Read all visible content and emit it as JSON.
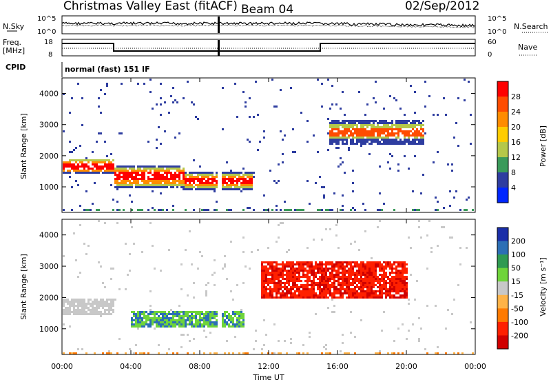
{
  "header": {
    "title": "Christmas Valley East (fitACF)",
    "beam": "Beam 04",
    "date": "02/Sep/2012"
  },
  "panels": {
    "nsky_label": "N.Sky",
    "nsky_ticks": [
      "10^5",
      "10^0"
    ],
    "nsearch_label": "N.Search",
    "nsearch_ticks": [
      "10^5",
      "10^0"
    ],
    "freq_label": "Freq.",
    "freq_unit": "[MHz]",
    "freq_ticks": [
      "18",
      "8"
    ],
    "nave_label": "Nave",
    "nave_ticks": [
      "60",
      "0"
    ],
    "cpid_label": "CPID",
    "cpid_text": "normal (fast) 151 IF"
  },
  "chart_data": [
    {
      "type": "heatmap",
      "name": "Power",
      "ylabel": "Slant Range [km]",
      "yticks": [
        "4000",
        "3000",
        "2000",
        "1000"
      ],
      "ylim": [
        180,
        4500
      ],
      "colorbar": {
        "label": "Power [dB]",
        "ticks": [
          "28",
          "24",
          "20",
          "16",
          "12",
          "8",
          "4"
        ],
        "colors": [
          "#ff0000",
          "#ff4c00",
          "#ff8c00",
          "#ffcc00",
          "#b5c84a",
          "#3a9a5a",
          "#2e3da0",
          "#0026ff"
        ]
      },
      "features": [
        {
          "time": [
            0,
            3.0
          ],
          "range": [
            1450,
            1950
          ],
          "level": "high"
        },
        {
          "time": [
            3.0,
            7.0
          ],
          "range": [
            1000,
            1750
          ],
          "level": "high"
        },
        {
          "time": [
            7.0,
            11.0
          ],
          "range": [
            950,
            1500
          ],
          "level": "high"
        },
        {
          "time": [
            15.5,
            21.0
          ],
          "range": [
            2400,
            3200
          ],
          "level": "medium"
        }
      ]
    },
    {
      "type": "heatmap",
      "name": "Velocity",
      "ylabel": "Slant Range [km]",
      "xlabel": "Time UT",
      "xticks": [
        "00:00",
        "04:00",
        "08:00",
        "12:00",
        "16:00",
        "20:00",
        "00:00"
      ],
      "xlim_hours": [
        0,
        24
      ],
      "yticks": [
        "4000",
        "3000",
        "2000",
        "1000"
      ],
      "ylim": [
        180,
        4500
      ],
      "colorbar": {
        "label": "Velocity [m s⁻¹]",
        "ticks": [
          "200",
          "100",
          "50",
          "15",
          "-15",
          "-50",
          "-100",
          "-200"
        ],
        "colors": [
          "#1a2ea8",
          "#2c6fb5",
          "#2f9a52",
          "#6fd43a",
          "#c8c8c8",
          "#ffb347",
          "#ff7a00",
          "#ff2000",
          "#d00000"
        ]
      },
      "features": [
        {
          "time": [
            0,
            3.0
          ],
          "range": [
            1500,
            2000
          ],
          "velocity": "near-zero (ground scatter)"
        },
        {
          "time": [
            4.0,
            10.5
          ],
          "range": [
            1100,
            1600
          ],
          "velocity": "positive (green/blue)"
        },
        {
          "time": [
            11.5,
            20.0
          ],
          "range": [
            2000,
            3200
          ],
          "velocity": "negative (red)"
        }
      ]
    }
  ]
}
